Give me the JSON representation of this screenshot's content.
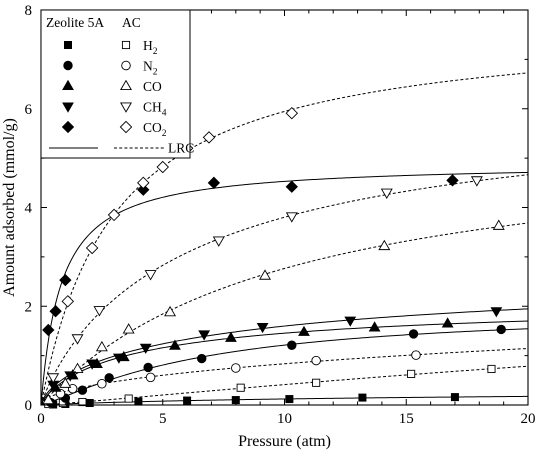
{
  "chart_data": {
    "type": "scatter",
    "xlabel": "Pressure (atm)",
    "ylabel": "Amount adsorbed (mmol/g)",
    "xlim": [
      0,
      20
    ],
    "ylim": [
      0,
      8
    ],
    "xticks": [
      0,
      5,
      10,
      15,
      20
    ],
    "yticks": [
      0,
      2,
      4,
      6,
      8
    ],
    "legend": {
      "placement": "top-left",
      "header_filled": "Zeolite 5A",
      "header_open": "AC",
      "entries": [
        {
          "label": "H",
          "sub": "2",
          "marker": "square"
        },
        {
          "label": "N",
          "sub": "2",
          "marker": "circle"
        },
        {
          "label": "CO",
          "sub": "",
          "marker": "triangle-up"
        },
        {
          "label": "CH",
          "sub": "4",
          "marker": "triangle-down"
        },
        {
          "label": "CO",
          "sub": "2",
          "marker": "diamond"
        }
      ],
      "line_label": "LRC"
    },
    "series": [
      {
        "gas": "H2",
        "adsorbent": "Zeolite 5A",
        "marker": "square",
        "filled": true,
        "points": [
          [
            0.5,
            0.01
          ],
          [
            1.0,
            0.02
          ],
          [
            2.0,
            0.04
          ],
          [
            4.0,
            0.07
          ],
          [
            6.0,
            0.09
          ],
          [
            8.0,
            0.1
          ],
          [
            10.2,
            0.12
          ],
          [
            13.2,
            0.15
          ],
          [
            17.0,
            0.16
          ]
        ]
      },
      {
        "gas": "H2",
        "adsorbent": "AC",
        "marker": "square",
        "filled": false,
        "points": [
          [
            0.3,
            0.02
          ],
          [
            0.9,
            0.04
          ],
          [
            1.7,
            0.06
          ],
          [
            3.6,
            0.13
          ],
          [
            8.2,
            0.35
          ],
          [
            11.3,
            0.45
          ],
          [
            15.2,
            0.63
          ],
          [
            18.5,
            0.73
          ]
        ]
      },
      {
        "gas": "N2",
        "adsorbent": "Zeolite 5A",
        "marker": "circle",
        "filled": true,
        "points": [
          [
            0.4,
            0.05
          ],
          [
            1.0,
            0.14
          ],
          [
            1.7,
            0.3
          ],
          [
            2.8,
            0.55
          ],
          [
            4.4,
            0.76
          ],
          [
            6.6,
            0.94
          ],
          [
            10.3,
            1.21
          ],
          [
            15.3,
            1.44
          ],
          [
            18.9,
            1.53
          ]
        ]
      },
      {
        "gas": "N2",
        "adsorbent": "AC",
        "marker": "circle",
        "filled": false,
        "points": [
          [
            0.8,
            0.23
          ],
          [
            1.3,
            0.33
          ],
          [
            2.5,
            0.43
          ],
          [
            4.5,
            0.56
          ],
          [
            8.0,
            0.75
          ],
          [
            11.3,
            0.9
          ],
          [
            15.4,
            1.01
          ]
        ]
      },
      {
        "gas": "CO",
        "adsorbent": "Zeolite 5A",
        "marker": "triangle-up",
        "filled": true,
        "points": [
          [
            0.6,
            0.35
          ],
          [
            1.3,
            0.6
          ],
          [
            2.3,
            0.83
          ],
          [
            3.4,
            0.97
          ],
          [
            5.5,
            1.2
          ],
          [
            7.8,
            1.36
          ],
          [
            10.8,
            1.48
          ],
          [
            13.7,
            1.57
          ],
          [
            16.7,
            1.65
          ]
        ]
      },
      {
        "gas": "CO",
        "adsorbent": "AC",
        "marker": "triangle-up",
        "filled": false,
        "points": [
          [
            0.3,
            0.1
          ],
          [
            1.0,
            0.43
          ],
          [
            1.5,
            0.73
          ],
          [
            2.5,
            1.17
          ],
          [
            3.6,
            1.53
          ],
          [
            5.3,
            1.88
          ],
          [
            9.2,
            2.62
          ],
          [
            14.1,
            3.22
          ],
          [
            18.8,
            3.63
          ]
        ]
      },
      {
        "gas": "CH4",
        "adsorbent": "Zeolite 5A",
        "marker": "triangle-down",
        "filled": true,
        "points": [
          [
            0.5,
            0.41
          ],
          [
            1.2,
            0.6
          ],
          [
            2.1,
            0.84
          ],
          [
            3.2,
            0.96
          ],
          [
            4.3,
            1.16
          ],
          [
            6.7,
            1.43
          ],
          [
            9.1,
            1.58
          ],
          [
            12.7,
            1.71
          ],
          [
            18.7,
            1.9
          ]
        ]
      },
      {
        "gas": "CH4",
        "adsorbent": "AC",
        "marker": "triangle-down",
        "filled": false,
        "points": [
          [
            0.5,
            0.56
          ],
          [
            1.5,
            1.35
          ],
          [
            2.4,
            1.92
          ],
          [
            4.5,
            2.65
          ],
          [
            7.3,
            3.33
          ],
          [
            10.3,
            3.82
          ],
          [
            14.2,
            4.3
          ],
          [
            17.9,
            4.55
          ]
        ]
      },
      {
        "gas": "CO2",
        "adsorbent": "Zeolite 5A",
        "marker": "diamond",
        "filled": true,
        "points": [
          [
            0.3,
            1.52
          ],
          [
            0.6,
            1.9
          ],
          [
            1.0,
            2.53
          ],
          [
            4.2,
            4.36
          ],
          [
            7.1,
            4.5
          ],
          [
            10.3,
            4.42
          ],
          [
            16.9,
            4.55
          ]
        ]
      },
      {
        "gas": "CO2",
        "adsorbent": "AC",
        "marker": "diamond",
        "filled": false,
        "points": [
          [
            1.1,
            2.1
          ],
          [
            2.1,
            3.18
          ],
          [
            3.0,
            3.85
          ],
          [
            4.2,
            4.5
          ],
          [
            5.0,
            4.82
          ],
          [
            6.0,
            5.2
          ],
          [
            6.9,
            5.42
          ],
          [
            10.3,
            5.91
          ]
        ]
      }
    ]
  }
}
